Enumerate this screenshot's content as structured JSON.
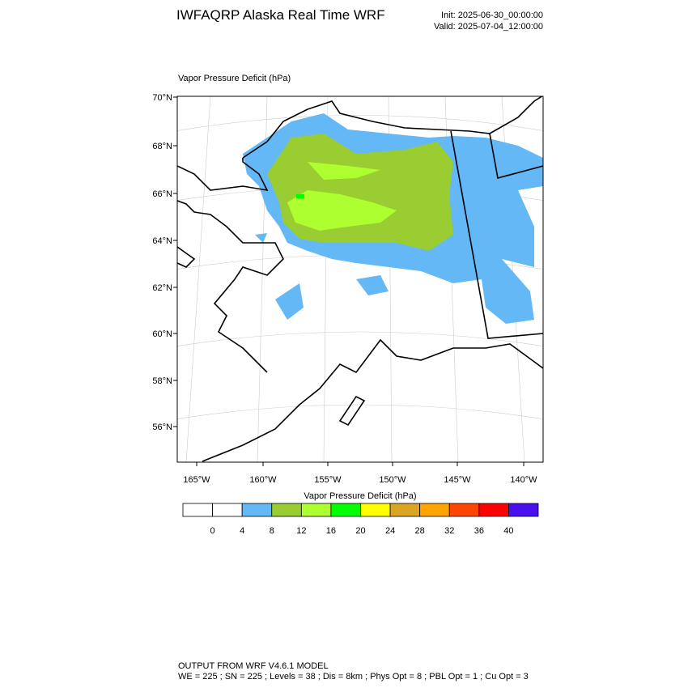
{
  "header": {
    "title": "IWFAQRP Alaska Real Time WRF",
    "init": "Init: 2025-06-30_00:00:00",
    "valid": "Valid: 2025-07-04_12:00:00"
  },
  "map": {
    "subtitle": "Vapor Pressure Deficit   (hPa)",
    "lat_labels": [
      "70°N",
      "68°N",
      "66°N",
      "64°N",
      "62°N",
      "60°N",
      "58°N",
      "56°N"
    ],
    "lon_labels": [
      "165°W",
      "160°W",
      "155°W",
      "150°W",
      "145°W",
      "140°W"
    ]
  },
  "colorbar": {
    "title": "Vapor Pressure Deficit  (hPa)",
    "levels": [
      0,
      4,
      8,
      12,
      16,
      20,
      24,
      28,
      32,
      36,
      40
    ],
    "colors": [
      "#ffffff",
      "#ffffff",
      "#63b8f5",
      "#9acd32",
      "#adff2f",
      "#00ff00",
      "#ffff00",
      "#daa520",
      "#ffa500",
      "#ff4500",
      "#ff0000",
      "#4b0ff0"
    ]
  },
  "footer": {
    "line1": "OUTPUT FROM WRF V4.6.1 MODEL",
    "line2": "WE = 225 ; SN = 225 ; Levels = 38 ; Dis = 8km ; Phys Opt = 8 ; PBL Opt = 1 ; Cu Opt = 3"
  }
}
